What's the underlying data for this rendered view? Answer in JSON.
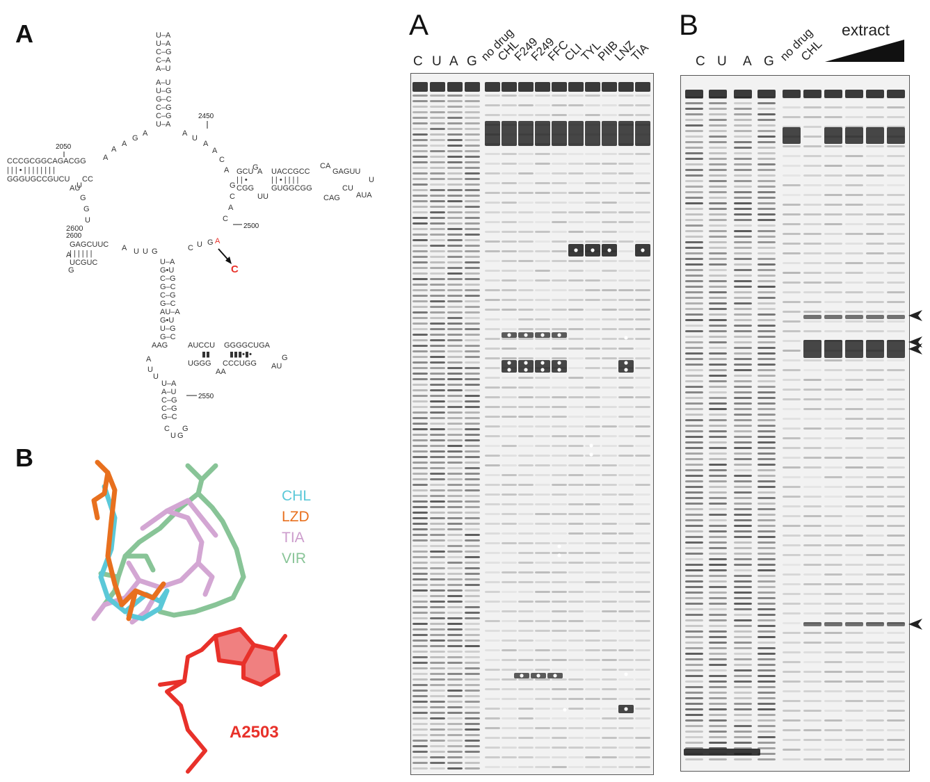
{
  "figure": {
    "left": {
      "panel_a_letter": "A",
      "panel_b_letter": "B",
      "nucleotide_labels": [
        "2050",
        "2450",
        "2500",
        "2550",
        "2600"
      ],
      "mutation": {
        "from": "A",
        "to": "C"
      },
      "molecule_legend": [
        {
          "name": "CHL",
          "color": "#5bc8d8"
        },
        {
          "name": "LZD",
          "color": "#e8701e"
        },
        {
          "name": "TIA",
          "color": "#cc9ccc"
        },
        {
          "name": "VIR",
          "color": "#88c497"
        }
      ],
      "residue_label": "A2503",
      "residue_color": "#e8312a"
    },
    "gel_a": {
      "letter": "A",
      "lanes": [
        "C",
        "U",
        "A",
        "G",
        "no drug",
        "CHL",
        "F249",
        "F249",
        "FFC",
        "CLI",
        "TYL",
        "PIIB",
        "LNZ",
        "TIA"
      ]
    },
    "gel_b": {
      "letter": "B",
      "lanes": [
        "C",
        "U",
        "A",
        "G",
        "no drug",
        "CHL"
      ],
      "gradient_label": "extract"
    }
  }
}
